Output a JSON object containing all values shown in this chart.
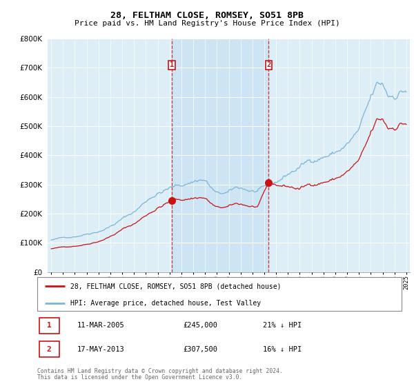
{
  "title": "28, FELTHAM CLOSE, ROMSEY, SO51 8PB",
  "subtitle": "Price paid vs. HM Land Registry's House Price Index (HPI)",
  "hpi_label": "HPI: Average price, detached house, Test Valley",
  "price_label": "28, FELTHAM CLOSE, ROMSEY, SO51 8PB (detached house)",
  "footer1": "Contains HM Land Registry data © Crown copyright and database right 2024.",
  "footer2": "This data is licensed under the Open Government Licence v3.0.",
  "transaction1": {
    "num": "1",
    "date": "11-MAR-2005",
    "price": "£245,000",
    "pct": "21% ↓ HPI"
  },
  "transaction2": {
    "num": "2",
    "date": "17-MAY-2013",
    "price": "£307,500",
    "pct": "16% ↓ HPI"
  },
  "vline1_x": 2005.19,
  "vline2_x": 2013.37,
  "marker1_price": 245000,
  "marker2_price": 307500,
  "hpi_color": "#7ab5d8",
  "price_color": "#cc1111",
  "vline_color": "#cc1111",
  "background_color": "#ddeef7",
  "between_vlines_color": "#cce4f4",
  "ylim": [
    0,
    800000
  ],
  "xlim_start": 1995.0,
  "xlim_end": 2025.0,
  "yticks": [
    0,
    100000,
    200000,
    300000,
    400000,
    500000,
    600000,
    700000,
    800000
  ]
}
